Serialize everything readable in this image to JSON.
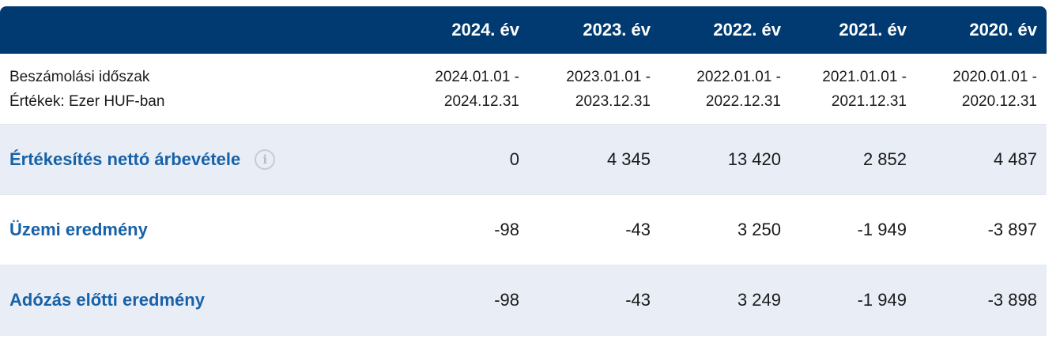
{
  "header": {
    "years": [
      "2024. év",
      "2023. év",
      "2022. év",
      "2021. év",
      "2020. év"
    ]
  },
  "period": {
    "label_line1": "Beszámolási időszak",
    "label_line2": "Értékek: Ezer HUF-ban",
    "ranges": [
      {
        "start": "2024.01.01 -",
        "end": "2024.12.31"
      },
      {
        "start": "2023.01.01 -",
        "end": "2023.12.31"
      },
      {
        "start": "2022.01.01 -",
        "end": "2022.12.31"
      },
      {
        "start": "2021.01.01 -",
        "end": "2021.12.31"
      },
      {
        "start": "2020.01.01 -",
        "end": "2020.12.31"
      }
    ]
  },
  "rows": [
    {
      "label": "Értékesítés nettó árbevétele",
      "info_icon": "info-icon",
      "values": [
        "0",
        "4 345",
        "13 420",
        "2 852",
        "4 487"
      ]
    },
    {
      "label": "Üzemi eredmény",
      "values": [
        "-98",
        "-43",
        "3 250",
        "-1 949",
        "-3 897"
      ]
    },
    {
      "label": "Adózás előtti eredmény",
      "values": [
        "-98",
        "-43",
        "3 249",
        "-1 949",
        "-3 898"
      ]
    }
  ],
  "colors": {
    "header_bg": "#003a70",
    "label_blue": "#1761a8",
    "shaded_row": "#e9eef6"
  }
}
